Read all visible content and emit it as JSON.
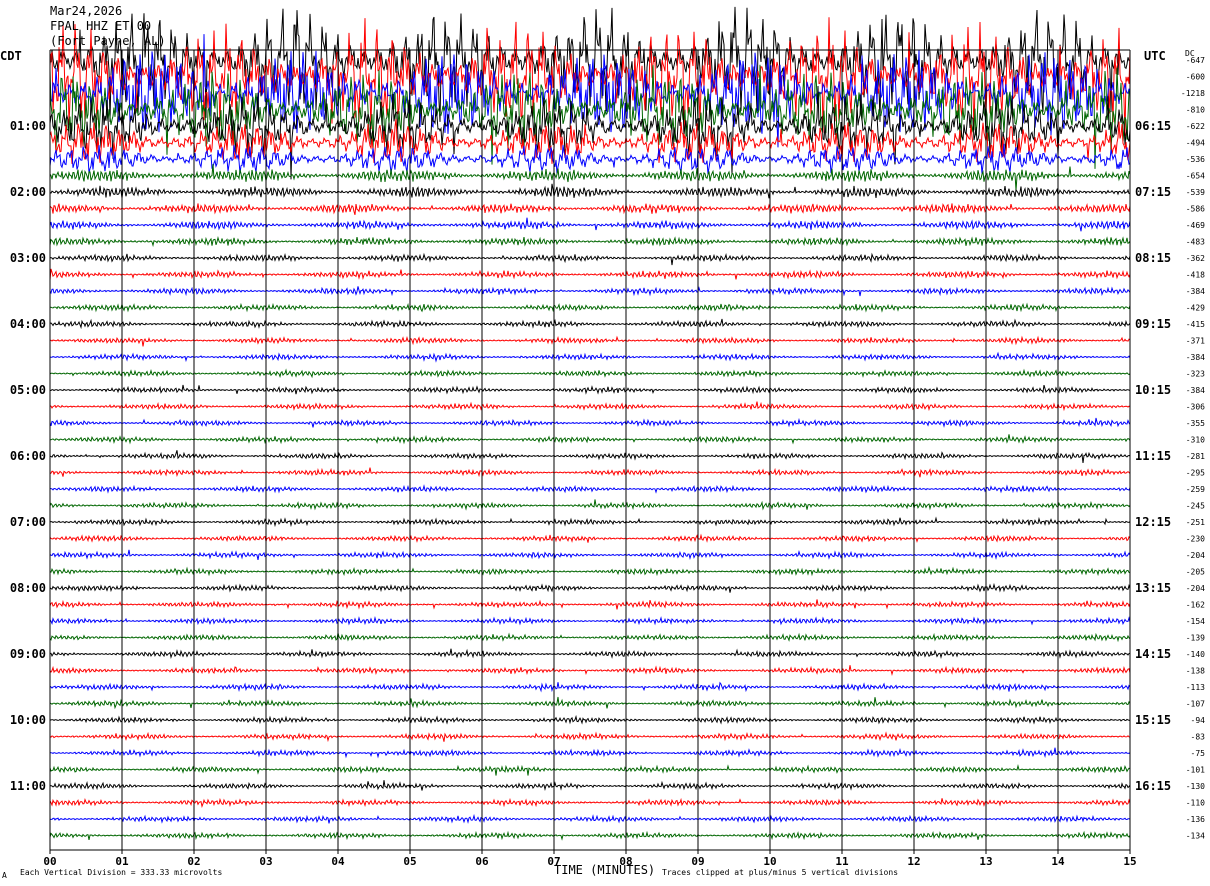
{
  "header": {
    "date": "Mar24,2026",
    "station": "FPAL HHZ ET 00",
    "location": "(Fort Payne, AL)"
  },
  "labels": {
    "left_timezone": "CDT",
    "right_timezone": "UTC",
    "dc_header": "DC"
  },
  "footer": {
    "scale_note": "Each Vertical Division =  333.33 microvolts",
    "clip_note": "Traces clipped at plus/minus 5 vertical divisions",
    "marker": "A"
  },
  "colors": {
    "trace_cycle": [
      "#000000",
      "#ff0000",
      "#0000ff",
      "#006600"
    ],
    "grid": "#000000",
    "background": "#ffffff"
  },
  "chart_data": {
    "type": "line",
    "title": "FPAL HHZ ET 00",
    "xlabel": "TIME (MINUTES)",
    "x_ticks": [
      "00",
      "01",
      "02",
      "03",
      "04",
      "05",
      "06",
      "07",
      "08",
      "09",
      "10",
      "11",
      "12",
      "13",
      "14",
      "15"
    ],
    "xlim": [
      0,
      15
    ],
    "rows_per_hour": 4,
    "minutes_per_row": 15,
    "left_hour_labels": [
      "01:00",
      "02:00",
      "03:00",
      "04:00",
      "05:00",
      "06:00",
      "07:00",
      "08:00",
      "09:00",
      "10:00",
      "11:00"
    ],
    "right_hour_labels": [
      "06:15",
      "07:15",
      "08:15",
      "09:15",
      "10:15",
      "11:15",
      "12:15",
      "13:15",
      "14:15",
      "15:15",
      "16:15"
    ],
    "dc_offsets": [
      -647,
      -600,
      -1218,
      -810,
      -622,
      -494,
      -536,
      -654,
      -539,
      -586,
      -469,
      -483,
      -362,
      -418,
      -384,
      -429,
      -415,
      -371,
      -384,
      -323,
      -384,
      -306,
      -355,
      -310,
      -281,
      -295,
      -259,
      -245,
      -251,
      -230,
      -204,
      -205,
      -204,
      -162,
      -154,
      -139,
      -140,
      -138,
      -113,
      -107,
      -94,
      -83,
      -75,
      -101,
      -130,
      -110,
      -136,
      -134
    ],
    "relative_amplitude": [
      5.5,
      5.5,
      5.0,
      4.2,
      3.2,
      2.3,
      1.6,
      1.2,
      1.0,
      0.85,
      0.75,
      0.7,
      0.6,
      0.6,
      0.55,
      0.55,
      0.55,
      0.5,
      0.5,
      0.5,
      0.5,
      0.5,
      0.5,
      0.5,
      0.5,
      0.5,
      0.5,
      0.5,
      0.5,
      0.5,
      0.5,
      0.5,
      0.5,
      0.5,
      0.5,
      0.5,
      0.5,
      0.5,
      0.5,
      0.5,
      0.5,
      0.5,
      0.5,
      0.5,
      0.5,
      0.5,
      0.5,
      0.5
    ],
    "clip_divisions": 5
  }
}
